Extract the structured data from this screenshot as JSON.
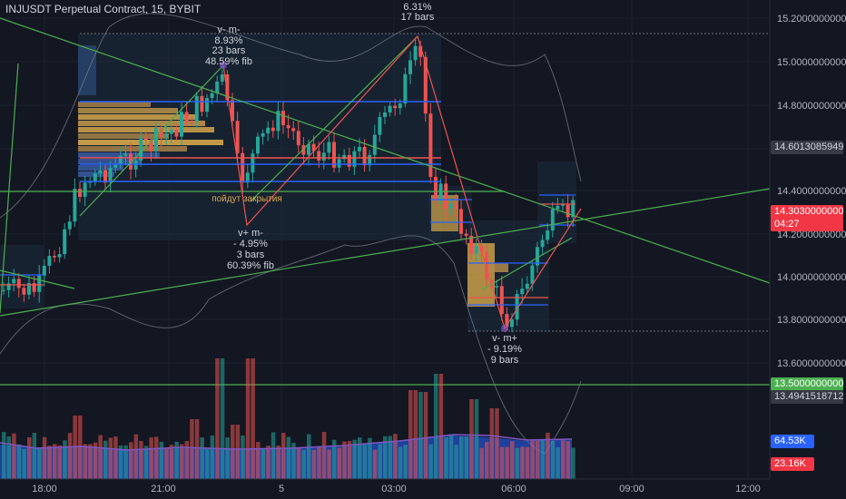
{
  "title": "INJUSDT Perpetual Contract, 15, BYBIT",
  "price_axis": [
    "15.2000000000",
    "15.0000000000",
    "14.8000000000",
    "14.4000000000",
    "14.2000000000",
    "14.0000000000",
    "13.8000000000",
    "13.6000000000"
  ],
  "time_axis": [
    "18:00",
    "21:00",
    "5",
    "03:00",
    "06:00",
    "09:00",
    "12:00"
  ],
  "tags": {
    "current_price": "14.6013085949",
    "last_price": "14.3030000000",
    "countdown": "04:27",
    "level_green": "13.5000000000",
    "level_gray": "13.4941518712",
    "volume_ma": "64.53K",
    "volume": "23.16K"
  },
  "colors": {
    "up": "#26a69a",
    "down": "#ef5350",
    "green_line": "#4caf50",
    "blue_line": "#2962ff",
    "volume_area": "#2962ff",
    "volume_ma_line": "#7e57c2"
  },
  "annotations": {
    "zz1": [
      "v- m-",
      "8.93%",
      "23 bars",
      "48.59% fib"
    ],
    "zz2": [
      "6.31%",
      "17 bars"
    ],
    "zz3": [
      "v+ m-",
      "- 4.95%",
      "3 bars",
      "60.39% fib"
    ],
    "zz4": [
      "v- m+",
      "- 9.19%",
      "9 bars"
    ],
    "note": "пойдут закрытия"
  },
  "icons": [
    "chart-canvas"
  ]
}
